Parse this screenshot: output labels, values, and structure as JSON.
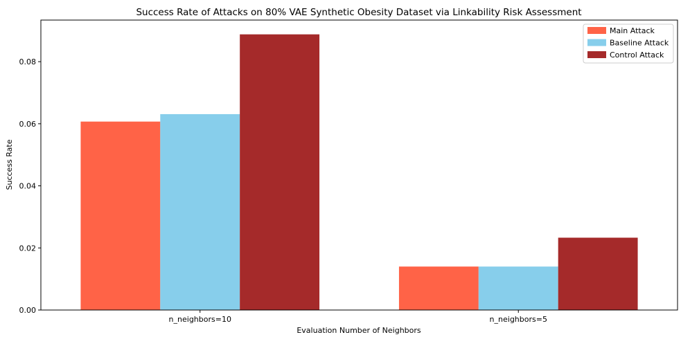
{
  "chart_data": {
    "type": "bar",
    "title": "Success Rate of Attacks on 80% VAE Synthetic Obesity Dataset via Linkability Risk Assessment",
    "xlabel": "Evaluation Number of Neighbors",
    "ylabel": "Success Rate",
    "categories": [
      "n_neighbors=10",
      "n_neighbors=5"
    ],
    "ylim": [
      0,
      0.0934
    ],
    "yticks": [
      "0.00",
      "0.02",
      "0.04",
      "0.06",
      "0.08"
    ],
    "grid": false,
    "legend_position": "top-right",
    "series": [
      {
        "name": "Main Attack",
        "color": "#ff6347",
        "values": [
          0.0607,
          0.014
        ]
      },
      {
        "name": "Baseline Attack",
        "color": "#87ceeb",
        "values": [
          0.0631,
          0.014
        ]
      },
      {
        "name": "Control Attack",
        "color": "#a52a2a",
        "values": [
          0.0888,
          0.0233
        ]
      }
    ]
  }
}
